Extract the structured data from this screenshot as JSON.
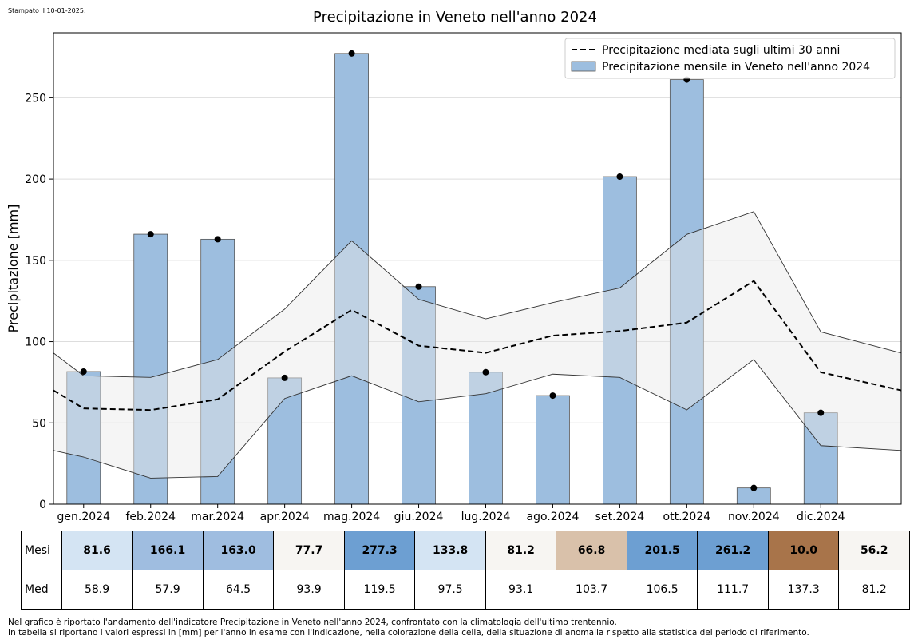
{
  "stamp": "Stampato il 10-01-2025.",
  "chart_data": {
    "type": "bar",
    "title": "Precipitazione in Veneto nell'anno 2024",
    "xlabel": "",
    "ylabel": "Precipitazione [mm]",
    "ylim": [
      0,
      290
    ],
    "yticks": [
      0,
      50,
      100,
      150,
      200,
      250
    ],
    "categories": [
      "gen.2024",
      "feb.2024",
      "mar.2024",
      "apr.2024",
      "mag.2024",
      "giu.2024",
      "lug.2024",
      "ago.2024",
      "set.2024",
      "ott.2024",
      "nov.2024",
      "dic.2024"
    ],
    "series": [
      {
        "name": "Precipitazione mensile in Veneto nell'anno 2024",
        "kind": "bar",
        "color": "#9dbedf",
        "values": [
          81.6,
          166.1,
          163.0,
          77.7,
          277.3,
          133.8,
          81.2,
          66.8,
          201.5,
          261.2,
          10.0,
          56.2
        ]
      },
      {
        "name": "Precipitazione mediata sugli ultimi 30 anni",
        "kind": "dashed-line",
        "values": [
          58.9,
          57.9,
          64.5,
          93.9,
          119.5,
          97.5,
          93.1,
          103.7,
          106.5,
          111.7,
          137.3,
          81.2
        ],
        "edge_values": [
          70,
          70
        ]
      },
      {
        "name": "upper band",
        "kind": "band-edge",
        "values": [
          79,
          78,
          89,
          120,
          162,
          126,
          114,
          124,
          133,
          166,
          180,
          106
        ],
        "edge_values": [
          93,
          93
        ]
      },
      {
        "name": "lower band",
        "kind": "band-edge",
        "values": [
          29,
          16,
          17,
          65,
          79,
          63,
          68,
          80,
          78,
          58,
          89,
          36
        ],
        "edge_values": [
          33,
          33
        ]
      }
    ],
    "legend_position": "top-right",
    "grid": "horizontal"
  },
  "table": {
    "row_labels": [
      "Mesi",
      "Med"
    ],
    "mesi": [
      "81.6",
      "166.1",
      "163.0",
      "77.7",
      "277.3",
      "133.8",
      "81.2",
      "66.8",
      "201.5",
      "261.2",
      "10.0",
      "56.2"
    ],
    "mesi_colors": [
      "#d4e4f3",
      "#9fbde0",
      "#9fbde0",
      "#f7f5f2",
      "#6d9fd2",
      "#d4e4f3",
      "#f7f5f2",
      "#d9c1aa",
      "#6d9fd2",
      "#6d9fd2",
      "#a8744a",
      "#f7f5f2"
    ],
    "med": [
      "58.9",
      "57.9",
      "64.5",
      "93.9",
      "119.5",
      "97.5",
      "93.1",
      "103.7",
      "106.5",
      "111.7",
      "137.3",
      "81.2"
    ]
  },
  "footnote": {
    "line1": "Nel grafico è riportato l'andamento dell'indicatore Precipitazione in Veneto nell'anno 2024, confrontato con la climatologia dell'ultimo trentennio.",
    "line2": "In tabella si riportano i valori espressi in [mm] per l'anno in esame con l'indicazione, nella colorazione della cella, della situazione di anomalia rispetto alla statistica del periodo di riferimento."
  }
}
